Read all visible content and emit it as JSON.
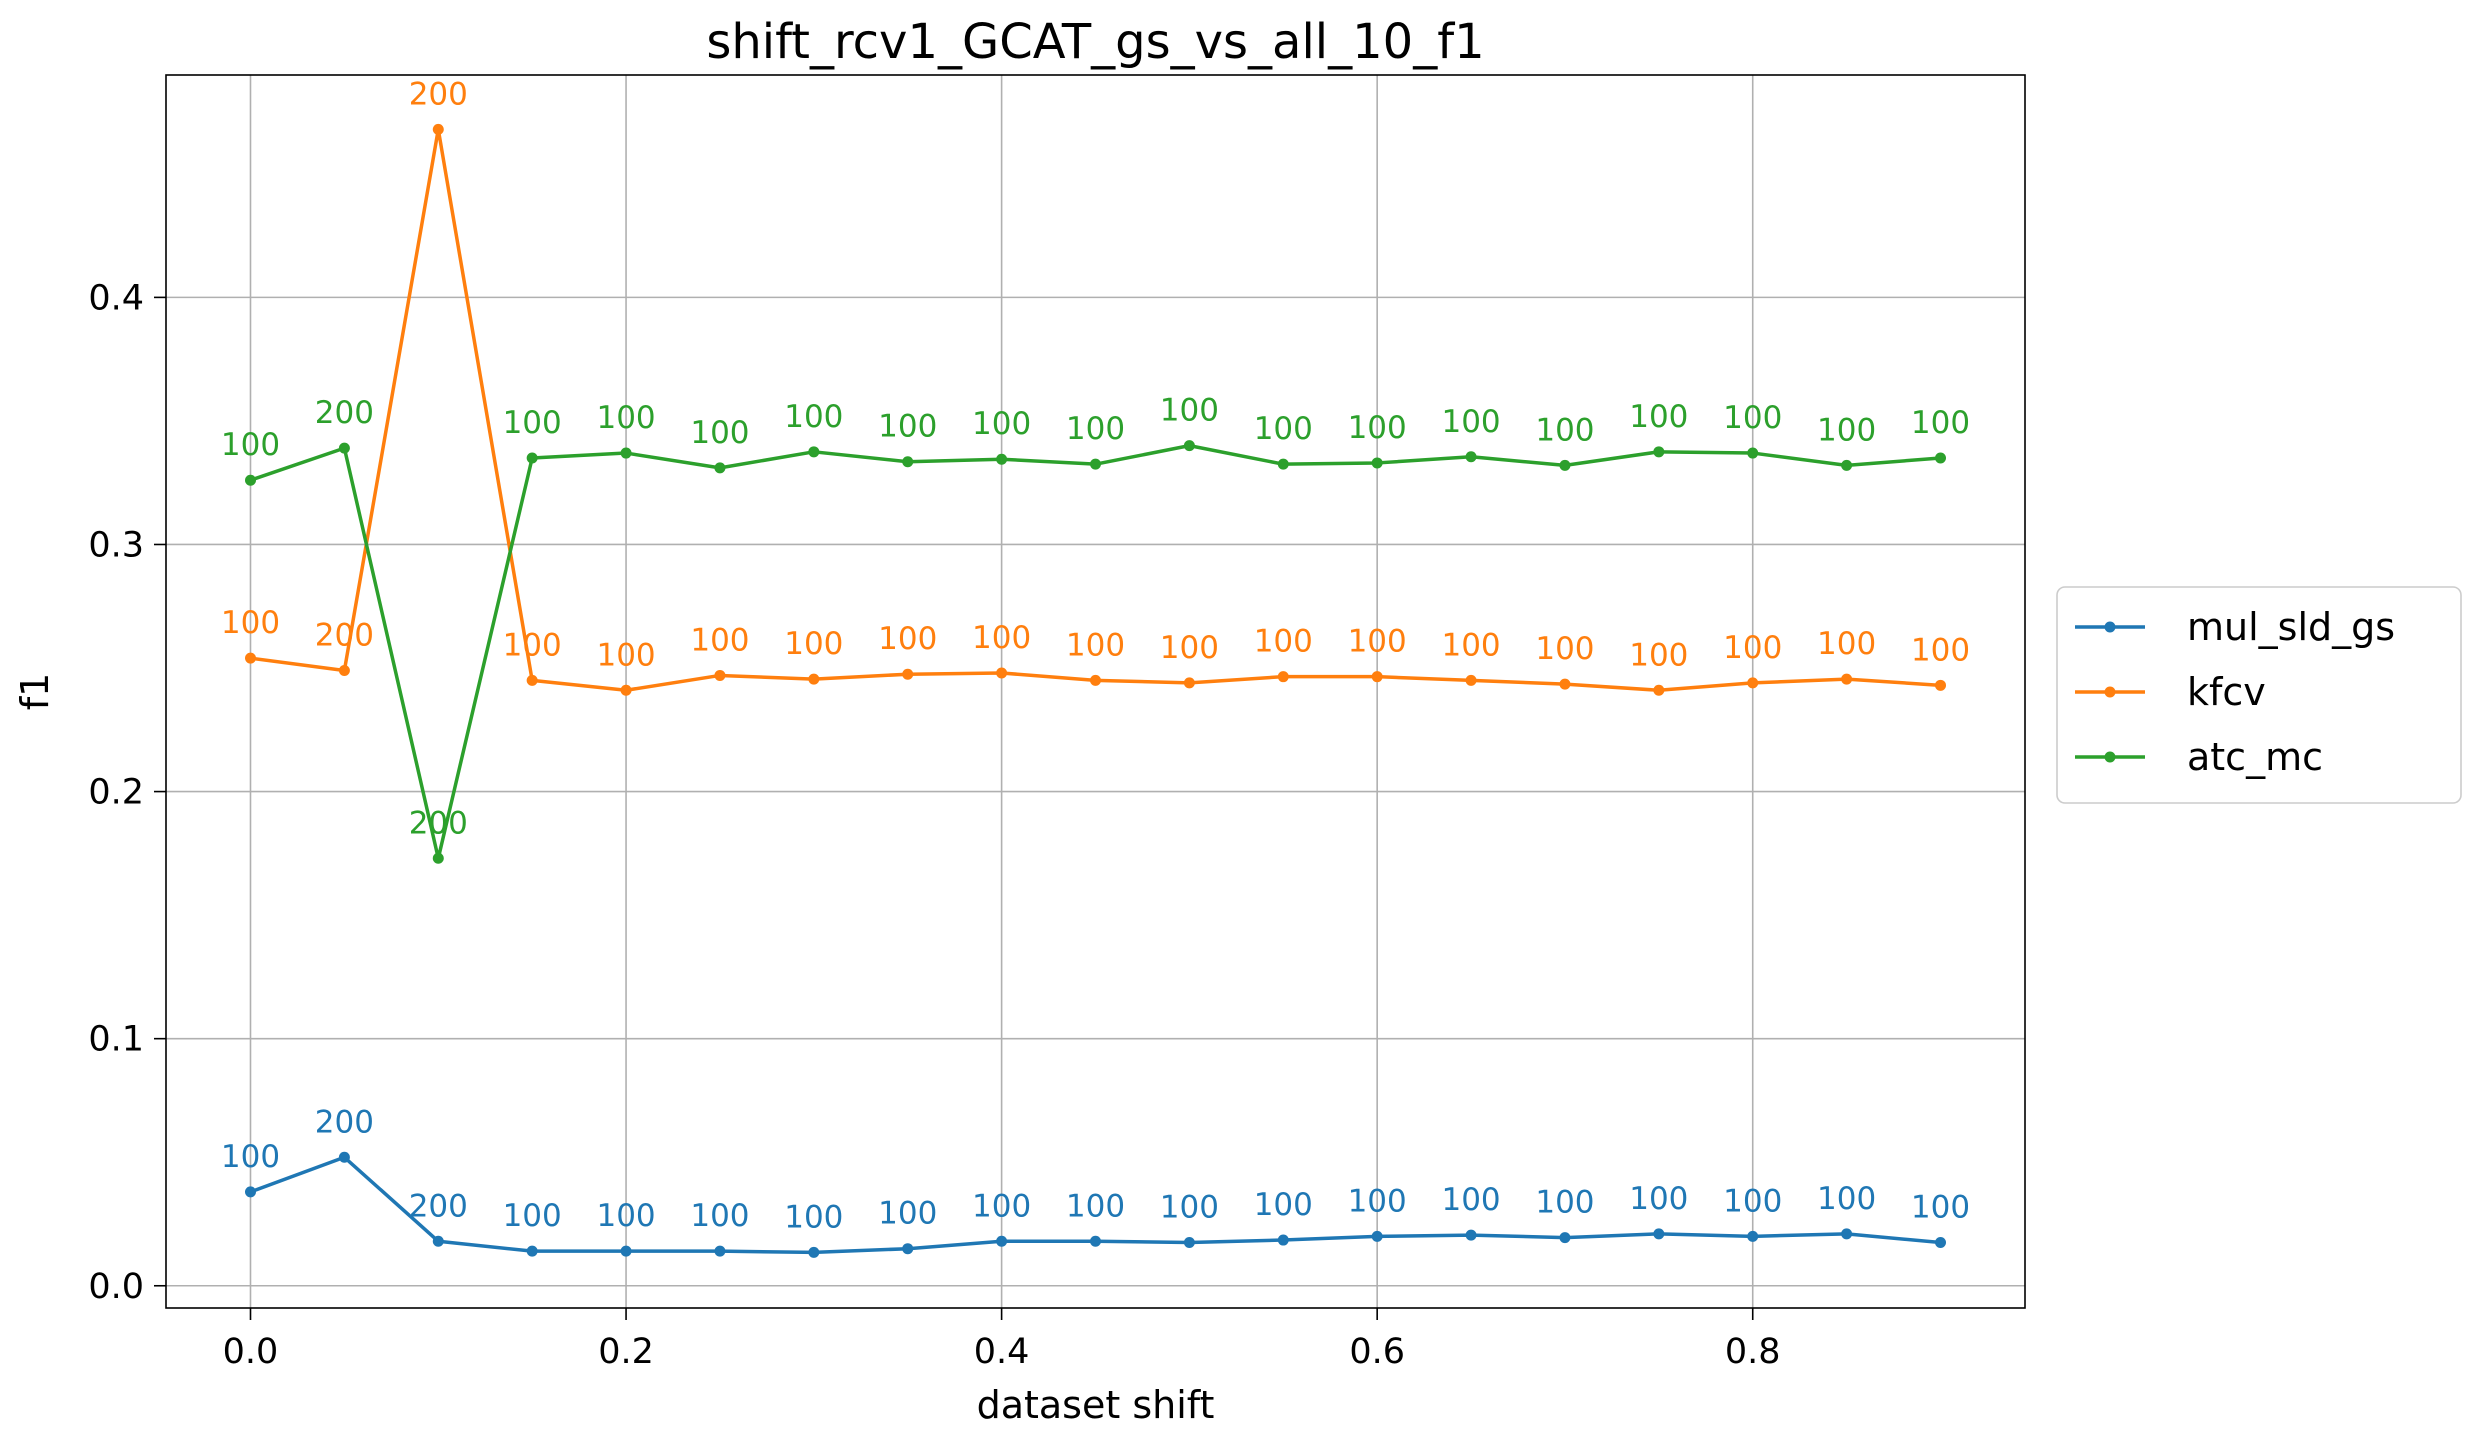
{
  "chart_data": {
    "type": "line",
    "title": "shift_rcv1_GCAT_gs_vs_all_10_f1",
    "xlabel": "dataset shift",
    "ylabel": "f1",
    "xlim": [
      -0.045,
      0.945
    ],
    "ylim": [
      -0.009,
      0.49
    ],
    "xticks": [
      "0.0",
      "0.2",
      "0.4",
      "0.6",
      "0.8"
    ],
    "xtick_values": [
      0.0,
      0.2,
      0.4,
      0.6,
      0.8
    ],
    "yticks": [
      "0.0",
      "0.1",
      "0.2",
      "0.3",
      "0.4"
    ],
    "ytick_values": [
      0.0,
      0.1,
      0.2,
      0.3,
      0.4
    ],
    "grid": true,
    "legend_position": "right, outside",
    "x": [
      0.0,
      0.05,
      0.1,
      0.15,
      0.2,
      0.25,
      0.3,
      0.35,
      0.4,
      0.45,
      0.5,
      0.55,
      0.6,
      0.65,
      0.7,
      0.75,
      0.8,
      0.85,
      0.9
    ],
    "series": [
      {
        "name": "mul_sld_gs",
        "color": "#1f77b4",
        "values": [
          0.038,
          0.052,
          0.018,
          0.014,
          0.014,
          0.014,
          0.0135,
          0.015,
          0.018,
          0.018,
          0.0175,
          0.0185,
          0.02,
          0.0205,
          0.0195,
          0.021,
          0.02,
          0.021,
          0.0175
        ],
        "labels": [
          "100",
          "200",
          "200",
          "100",
          "100",
          "100",
          "100",
          "100",
          "100",
          "100",
          "100",
          "100",
          "100",
          "100",
          "100",
          "100",
          "100",
          "100",
          "100"
        ]
      },
      {
        "name": "kfcv",
        "color": "#ff7f0e",
        "values": [
          0.254,
          0.249,
          0.468,
          0.245,
          0.241,
          0.247,
          0.2455,
          0.2475,
          0.248,
          0.245,
          0.244,
          0.2465,
          0.2465,
          0.245,
          0.2435,
          0.241,
          0.244,
          0.2455,
          0.243
        ],
        "labels": [
          "100",
          "200",
          "200",
          "100",
          "100",
          "100",
          "100",
          "100",
          "100",
          "100",
          "100",
          "100",
          "100",
          "100",
          "100",
          "100",
          "100",
          "100",
          "100"
        ]
      },
      {
        "name": "atc_mc",
        "color": "#2ca02c",
        "values": [
          0.326,
          0.339,
          0.173,
          0.335,
          0.337,
          0.331,
          0.3375,
          0.3335,
          0.3345,
          0.3325,
          0.34,
          0.3325,
          0.333,
          0.3355,
          0.332,
          0.3375,
          0.337,
          0.332,
          0.335
        ],
        "labels": [
          "100",
          "200",
          "200",
          "100",
          "100",
          "100",
          "100",
          "100",
          "100",
          "100",
          "100",
          "100",
          "100",
          "100",
          "100",
          "100",
          "100",
          "100",
          "100"
        ]
      }
    ]
  }
}
